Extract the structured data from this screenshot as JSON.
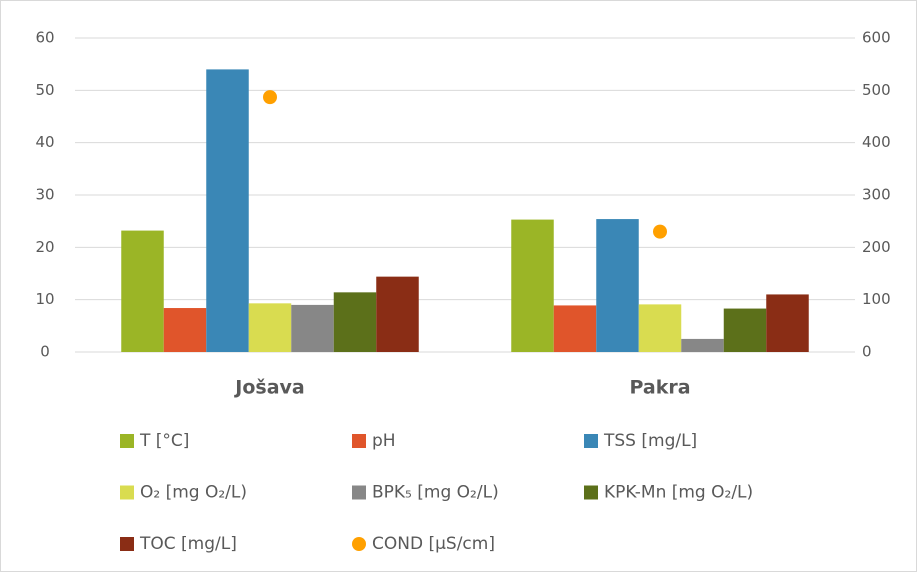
{
  "chart_data": {
    "type": "bar",
    "categories": [
      "Jošava",
      "Pakra"
    ],
    "series": [
      {
        "name": "T [°C]",
        "color": "#9bb526",
        "values": [
          23.2,
          25.3
        ]
      },
      {
        "name": "pH",
        "color": "#e0552b",
        "values": [
          8.4,
          8.9
        ]
      },
      {
        "name": "TSS [mg/L]",
        "color": "#3a87b6",
        "values": [
          54,
          25.4
        ]
      },
      {
        "name": "O₂ [mg O₂/L)",
        "color": "#d9dc50",
        "values": [
          9.3,
          9.1
        ]
      },
      {
        "name": "BPK₅ [mg O₂/L)",
        "color": "#878787",
        "values": [
          9.0,
          2.5
        ]
      },
      {
        "name": "KPK-Mn [mg O₂/L)",
        "color": "#5c701a",
        "values": [
          11.4,
          8.3
        ]
      },
      {
        "name": "TOC [mg/L]",
        "color": "#8a2d15",
        "values": [
          14.4,
          11.0
        ]
      },
      {
        "name": "COND [µS/cm]",
        "color": "#ffa000",
        "values": [
          487,
          230
        ],
        "axis": "y2",
        "type": "scatter"
      }
    ],
    "ylim": [
      0,
      60
    ],
    "yticks": [
      0,
      10,
      20,
      30,
      40,
      50,
      60
    ],
    "y2lim": [
      0,
      600
    ],
    "y2ticks": [
      0,
      100,
      200,
      300,
      400,
      500,
      600
    ],
    "grid": true,
    "legend": "bottom"
  }
}
